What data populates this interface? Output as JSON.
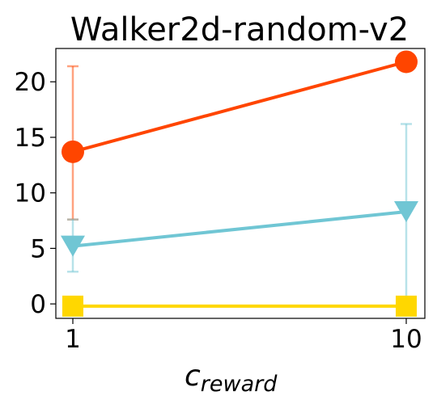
{
  "chart_data": {
    "type": "line",
    "title": "Walker2d-random-v2",
    "xlabel": {
      "base": "c",
      "subscript": "reward"
    },
    "ylabel": "",
    "x": [
      1,
      10
    ],
    "x_tick_labels": [
      "1",
      "10"
    ],
    "yticks": [
      0,
      5,
      10,
      15,
      20
    ],
    "y_tick_labels": [
      "0",
      "5",
      "10",
      "15",
      "20"
    ],
    "ylim": [
      -1.3,
      23
    ],
    "grid": false,
    "legend": "none",
    "series": [
      {
        "color": "#FF4500",
        "marker": "circle",
        "values": [
          13.7,
          21.8
        ],
        "error_low": [
          7.6,
          null
        ],
        "error_high": [
          21.4,
          null
        ]
      },
      {
        "color": "#70C6D4",
        "marker": "triangle-down",
        "values": [
          5.2,
          8.3
        ],
        "error_low": [
          2.9,
          0.2
        ],
        "error_high": [
          7.6,
          16.2
        ]
      },
      {
        "color": "#FFD700",
        "marker": "square",
        "values": [
          -0.2,
          -0.2
        ],
        "error_low": [
          null,
          null
        ],
        "error_high": [
          null,
          null
        ]
      }
    ]
  }
}
